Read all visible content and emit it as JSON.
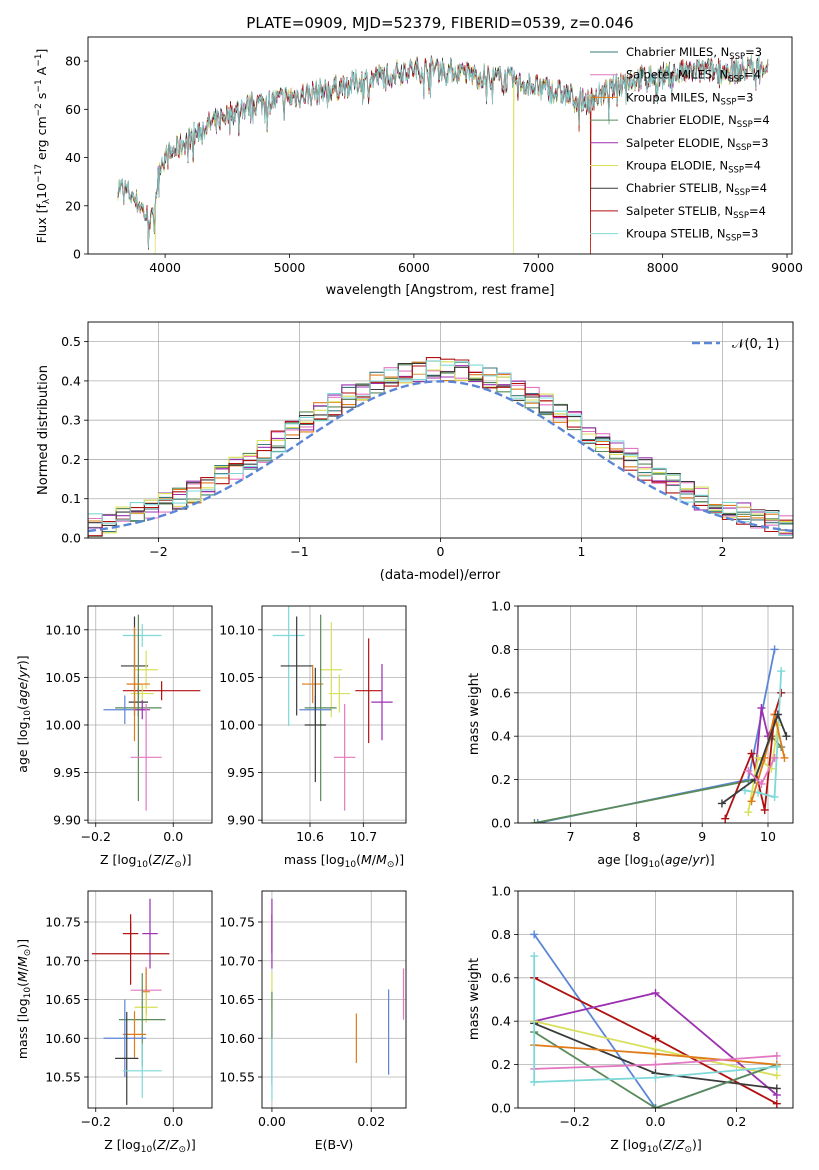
{
  "figure_title": "PLATE=0909, MJD=52379, FIBERID=0539, z=0.046",
  "colors": {
    "Chabrier MILES": "#3a7a7a",
    "Salpeter MILES": "#e377c2",
    "Kroupa MILES": "#e07b1a",
    "Chabrier ELODIE": "#5a8a5a",
    "Salpeter ELODIE": "#9b30b0",
    "Kroupa ELODIE": "#d8e05a",
    "Chabrier STELIB": "#3a3a3a",
    "Salpeter STELIB": "#b01010",
    "Kroupa STELIB": "#7fd8d8",
    "reference": "#5b86d6"
  },
  "chart_data": [
    {
      "id": "spectrum",
      "type": "line",
      "title": "PLATE=0909, MJD=52379, FIBERID=0539, z=0.046",
      "xlabel": "wavelength [Angstrom, rest frame]",
      "ylabel": "Flux [f_λ 10^-17 erg cm^-2 s^-1 A^-1]",
      "xlim": [
        3380,
        9040
      ],
      "ylim": [
        0,
        90
      ],
      "xticks": [
        4000,
        5000,
        6000,
        7000,
        8000,
        9000
      ],
      "yticks": [
        0,
        20,
        40,
        60,
        80
      ],
      "legend_position": "upper right",
      "legend": [
        {
          "label": "Chabrier MILES, N",
          "sub": "SSP",
          "suffix": "=3"
        },
        {
          "label": "Salpeter MILES, N",
          "sub": "SSP",
          "suffix": "=4"
        },
        {
          "label": "Kroupa MILES, N",
          "sub": "SSP",
          "suffix": "=3"
        },
        {
          "label": "Chabrier ELODIE, N",
          "sub": "SSP",
          "suffix": "=4"
        },
        {
          "label": "Salpeter ELODIE, N",
          "sub": "SSP",
          "suffix": "=3"
        },
        {
          "label": "Kroupa ELODIE, N",
          "sub": "SSP",
          "suffix": "=4"
        },
        {
          "label": "Chabrier STELIB, N",
          "sub": "SSP",
          "suffix": "=4"
        },
        {
          "label": "Salpeter STELIB, N",
          "sub": "SSP",
          "suffix": "=4"
        },
        {
          "label": "Kroupa STELIB, N",
          "sub": "SSP",
          "suffix": "=3"
        }
      ],
      "continuum_anchors": [
        [
          3620,
          28
        ],
        [
          3700,
          26
        ],
        [
          3800,
          20
        ],
        [
          3850,
          16
        ],
        [
          3900,
          14
        ],
        [
          3960,
          38
        ],
        [
          4100,
          44
        ],
        [
          4300,
          52
        ],
        [
          4500,
          58
        ],
        [
          4700,
          62
        ],
        [
          4900,
          64
        ],
        [
          5100,
          66
        ],
        [
          5300,
          68
        ],
        [
          5600,
          72
        ],
        [
          5900,
          76
        ],
        [
          6200,
          77
        ],
        [
          6500,
          74
        ],
        [
          6800,
          72
        ],
        [
          7100,
          68
        ],
        [
          7400,
          63
        ],
        [
          7700,
          72
        ],
        [
          8000,
          74
        ],
        [
          8300,
          76
        ],
        [
          8600,
          76
        ],
        [
          8800,
          78
        ]
      ],
      "spectrum_range": [
        3620,
        8850
      ],
      "drop_to_zero": [
        {
          "model": "Kroupa ELODIE",
          "x": 3920
        },
        {
          "model": "Kroupa ELODIE",
          "x": 6800
        },
        {
          "model": "Kroupa MILES",
          "x": 7420
        },
        {
          "model": "Salpeter STELIB",
          "x": 7420
        }
      ]
    },
    {
      "id": "residual_histogram",
      "type": "step",
      "xlabel": "(data-model)/error",
      "ylabel": "Normed distribution",
      "xlim": [
        -2.5,
        2.5
      ],
      "ylim": [
        0,
        0.55
      ],
      "xticks": [
        -2,
        -1,
        0,
        1,
        2
      ],
      "yticks": [
        0.0,
        0.1,
        0.2,
        0.3,
        0.4,
        0.5
      ],
      "grid": true,
      "reference_curve": {
        "label": "𝒩(0, 1)",
        "mean": 0,
        "sigma": 1
      },
      "bin_width": 0.1,
      "bin_start": -2.5,
      "legend_position": "upper right"
    },
    {
      "id": "age_vs_Z",
      "type": "errorbar",
      "xlabel": "Z [log10(Z/Z⊙)]",
      "ylabel": "age [log10(age/yr)]",
      "xlim": [
        -0.22,
        0.1
      ],
      "ylim": [
        9.897,
        10.125
      ],
      "xticks": [
        -0.2,
        0.0
      ],
      "yticks": [
        9.9,
        9.95,
        10.0,
        10.05,
        10.1
      ],
      "grid": true,
      "points": [
        {
          "model": "Kroupa STELIB",
          "x": -0.08,
          "xerr": 0.05,
          "y": 10.094,
          "yerr": 0.012
        },
        {
          "model": "Chabrier STELIB",
          "x": -0.1,
          "xerr": 0.035,
          "y": 10.062,
          "yerr": 0.052
        },
        {
          "model": "Kroupa ELODIE",
          "x": -0.07,
          "xerr": 0.03,
          "y": 10.058,
          "yerr": 0.02
        },
        {
          "model": "Kroupa MILES",
          "x": -0.09,
          "xerr": 0.03,
          "y": 10.043,
          "yerr": 0.01
        },
        {
          "model": "Salpeter STELIB",
          "x": -0.03,
          "xerr": 0.1,
          "y": 10.036,
          "yerr": 0.01
        },
        {
          "model": "Kroupa ELODIE",
          "x": -0.08,
          "xerr": 0.03,
          "y": 10.033,
          "yerr": 0.01
        },
        {
          "model": "Chabrier STELIB",
          "x": -0.09,
          "xerr": 0.025,
          "y": 10.024,
          "yerr": 0.015
        },
        {
          "model": "Chabrier ELODIE",
          "x": -0.09,
          "xerr": 0.06,
          "y": 10.018,
          "yerr": 0.098
        },
        {
          "model": "Reference",
          "x": -0.125,
          "xerr": 0.055,
          "y": 10.016,
          "yerr": 0.015
        },
        {
          "model": "Salpeter ELODIE",
          "x": -0.08,
          "xerr": 0.02,
          "y": 10.016,
          "yerr": 0.01
        },
        {
          "model": "Salpeter MILES",
          "x": -0.07,
          "xerr": 0.04,
          "y": 9.966,
          "yerr": 0.056
        },
        {
          "model": "Kroupa MILES",
          "x": -0.1,
          "xerr": 0.02,
          "y": 10.043,
          "yerr": 0.06
        }
      ]
    },
    {
      "id": "age_vs_mass",
      "type": "errorbar",
      "xlabel": "mass [log10(M/M⊙)]",
      "ylim": [
        9.897,
        10.125
      ],
      "xlim": [
        10.51,
        10.78
      ],
      "xticks": [
        10.6,
        10.7
      ],
      "yticks": [
        9.9,
        9.95,
        10.0,
        10.05,
        10.1
      ],
      "grid": true,
      "points": [
        {
          "model": "Kroupa STELIB",
          "x": 10.56,
          "xerr": 0.03,
          "y": 10.094,
          "yerr": 0.095
        },
        {
          "model": "Chabrier STELIB",
          "x": 10.575,
          "xerr": 0.03,
          "y": 10.062,
          "yerr": 0.052
        },
        {
          "model": "Kroupa ELODIE",
          "x": 10.64,
          "xerr": 0.02,
          "y": 10.058,
          "yerr": 0.05
        },
        {
          "model": "Kroupa MILES",
          "x": 10.605,
          "xerr": 0.02,
          "y": 10.043,
          "yerr": 0.02
        },
        {
          "model": "Kroupa ELODIE",
          "x": 10.655,
          "xerr": 0.02,
          "y": 10.033,
          "yerr": 0.02
        },
        {
          "model": "Salpeter STELIB",
          "x": 10.71,
          "xerr": 0.025,
          "y": 10.036,
          "yerr": 0.055
        },
        {
          "model": "Salpeter ELODIE",
          "x": 10.735,
          "xerr": 0.02,
          "y": 10.024,
          "yerr": 0.04
        },
        {
          "model": "Chabrier ELODIE",
          "x": 10.62,
          "xerr": 0.03,
          "y": 10.018,
          "yerr": 0.098
        },
        {
          "model": "Reference",
          "x": 10.61,
          "xerr": 0.03,
          "y": 10.016,
          "yerr": 0.015
        },
        {
          "model": "Salpeter MILES",
          "x": 10.665,
          "xerr": 0.02,
          "y": 9.966,
          "yerr": 0.056
        },
        {
          "model": "Chabrier STELIB",
          "x": 10.61,
          "xerr": 0.02,
          "y": 10.0,
          "yerr": 0.06
        }
      ]
    },
    {
      "id": "massweight_vs_age",
      "type": "line",
      "xlabel": "age [log10(age/yr)]",
      "ylabel": "mass weight",
      "xlim": [
        6.2,
        10.38
      ],
      "ylim": [
        0,
        1.0
      ],
      "xticks": [
        7,
        8,
        9,
        10
      ],
      "yticks": [
        0.0,
        0.2,
        0.4,
        0.6,
        0.8,
        1.0
      ],
      "grid": true,
      "series": [
        {
          "model": "Reference",
          "x": [
            6.5,
            9.7,
            10.1
          ],
          "y": [
            0.0,
            0.2,
            0.8
          ]
        },
        {
          "model": "Chabrier ELODIE",
          "x": [
            6.45,
            9.8,
            10.05,
            10.2
          ],
          "y": [
            0.0,
            0.2,
            0.4,
            0.35
          ]
        },
        {
          "model": "Salpeter ELODIE",
          "x": [
            9.8,
            9.9,
            10.0,
            10.15
          ],
          "y": [
            0.2,
            0.53,
            0.4,
            0.5
          ]
        },
        {
          "model": "Salpeter STELIB",
          "x": [
            9.35,
            9.75,
            9.95,
            10.1,
            10.2
          ],
          "y": [
            0.02,
            0.32,
            0.06,
            0.5,
            0.6
          ]
        },
        {
          "model": "Kroupa STELIB",
          "x": [
            9.65,
            9.85,
            10.1,
            10.2
          ],
          "y": [
            0.15,
            0.14,
            0.12,
            0.7
          ]
        },
        {
          "model": "Kroupa ELODIE",
          "x": [
            9.7,
            9.85,
            10.05,
            10.15
          ],
          "y": [
            0.05,
            0.3,
            0.25,
            0.45
          ]
        },
        {
          "model": "Kroupa MILES",
          "x": [
            9.75,
            9.95,
            10.1,
            10.25
          ],
          "y": [
            0.1,
            0.3,
            0.5,
            0.3
          ]
        },
        {
          "model": "Chabrier STELIB",
          "x": [
            9.3,
            9.8,
            10.15,
            10.28
          ],
          "y": [
            0.09,
            0.2,
            0.5,
            0.4
          ]
        },
        {
          "model": "Salpeter MILES",
          "x": [
            9.7,
            9.9,
            10.1
          ],
          "y": [
            0.24,
            0.18,
            0.3
          ]
        }
      ]
    },
    {
      "id": "mass_vs_Z",
      "type": "errorbar",
      "xlabel": "Z [log10(Z/Z⊙)]",
      "ylabel": "mass [log10(M/M⊙)]",
      "xlim": [
        -0.22,
        0.1
      ],
      "ylim": [
        10.51,
        10.79
      ],
      "xticks": [
        -0.2,
        0.0
      ],
      "yticks": [
        10.55,
        10.6,
        10.65,
        10.7,
        10.75
      ],
      "grid": true,
      "points": [
        {
          "model": "Salpeter STELIB",
          "x": -0.11,
          "xerr": 0.02,
          "y": 10.735,
          "yerr": 0.025
        },
        {
          "model": "Salpeter ELODIE",
          "x": -0.06,
          "xerr": 0.02,
          "y": 10.735,
          "yerr": 0.045
        },
        {
          "model": "Salpeter STELIB",
          "x": -0.11,
          "xerr": 0.1,
          "y": 10.709,
          "yerr": 0.04
        },
        {
          "model": "Salpeter MILES",
          "x": -0.07,
          "xerr": 0.04,
          "y": 10.662,
          "yerr": 0.03
        },
        {
          "model": "Kroupa MILES",
          "x": -0.07,
          "xerr": 0.01,
          "y": 10.66,
          "yerr": 0.03
        },
        {
          "model": "Kroupa ELODIE",
          "x": -0.07,
          "xerr": 0.03,
          "y": 10.64,
          "yerr": 0.02
        },
        {
          "model": "Chabrier ELODIE",
          "x": -0.08,
          "xerr": 0.06,
          "y": 10.624,
          "yerr": 0.06
        },
        {
          "model": "Kroupa MILES",
          "x": -0.1,
          "xerr": 0.03,
          "y": 10.605,
          "yerr": 0.03
        },
        {
          "model": "Reference",
          "x": -0.125,
          "xerr": 0.055,
          "y": 10.6,
          "yerr": 0.05
        },
        {
          "model": "Chabrier STELIB",
          "x": -0.12,
          "xerr": 0.03,
          "y": 10.574,
          "yerr": 0.06
        },
        {
          "model": "Kroupa STELIB",
          "x": -0.08,
          "xerr": 0.05,
          "y": 10.558,
          "yerr": 0.035
        }
      ]
    },
    {
      "id": "mass_vs_EBV",
      "type": "errorbar",
      "xlabel": "E(B-V)",
      "xlim": [
        -0.002,
        0.027
      ],
      "ylim": [
        10.51,
        10.79
      ],
      "xticks": [
        0.0,
        0.02
      ],
      "yticks": [
        10.55,
        10.6,
        10.65,
        10.7,
        10.75
      ],
      "grid": true,
      "points": [
        {
          "model": "Salpeter STELIB",
          "x": 0.0,
          "xerr": 0.0,
          "y": 10.735,
          "yerr": 0.025
        },
        {
          "model": "Salpeter ELODIE",
          "x": 0.0,
          "xerr": 0.0,
          "y": 10.735,
          "yerr": 0.045
        },
        {
          "model": "Kroupa ELODIE",
          "x": 0.0,
          "xerr": 0.0,
          "y": 10.66,
          "yerr": 0.025
        },
        {
          "model": "Chabrier ELODIE",
          "x": 0.0,
          "xerr": 0.0,
          "y": 10.6,
          "yerr": 0.06
        },
        {
          "model": "Kroupa STELIB",
          "x": 0.0,
          "xerr": 0.0,
          "y": 10.56,
          "yerr": 0.04
        },
        {
          "model": "Kroupa MILES",
          "x": 0.017,
          "xerr": 0.0,
          "y": 10.6,
          "yerr": 0.032
        },
        {
          "model": "Reference",
          "x": 0.0235,
          "xerr": 0.0,
          "y": 10.608,
          "yerr": 0.055
        },
        {
          "model": "Salpeter MILES",
          "x": 0.0265,
          "xerr": 0.0,
          "y": 10.657,
          "yerr": 0.033
        }
      ]
    },
    {
      "id": "massweight_vs_Z",
      "type": "line",
      "xlabel": "Z [log10(Z/Z⊙)]",
      "ylabel": "mass weight",
      "xlim": [
        -0.34,
        0.34
      ],
      "ylim": [
        0,
        1.0
      ],
      "xticks": [
        -0.2,
        0.0,
        0.2
      ],
      "yticks": [
        0.0,
        0.2,
        0.4,
        0.6,
        0.8,
        1.0
      ],
      "grid": true,
      "series": [
        {
          "model": "Reference",
          "x": [
            -0.3,
            0.0,
            0.3
          ],
          "y": [
            0.8,
            0.0,
            0.2
          ]
        },
        {
          "model": "Salpeter STELIB",
          "x": [
            -0.3,
            0.0,
            0.3
          ],
          "y": [
            0.6,
            0.32,
            0.02
          ]
        },
        {
          "model": "Salpeter ELODIE",
          "x": [
            -0.3,
            0.0,
            0.3
          ],
          "y": [
            0.4,
            0.53,
            0.06
          ]
        },
        {
          "model": "Kroupa ELODIE",
          "x": [
            -0.3,
            0.0,
            0.3
          ],
          "y": [
            0.4,
            0.27,
            0.15
          ]
        },
        {
          "model": "Chabrier STELIB",
          "x": [
            -0.3,
            0.0,
            0.3
          ],
          "y": [
            0.39,
            0.16,
            0.09
          ]
        },
        {
          "model": "Chabrier ELODIE",
          "x": [
            -0.3,
            0.0,
            0.3
          ],
          "y": [
            0.35,
            0.0,
            0.2
          ]
        },
        {
          "model": "Kroupa MILES",
          "x": [
            -0.3,
            0.0,
            0.3
          ],
          "y": [
            0.29,
            0.25,
            0.2
          ]
        },
        {
          "model": "Salpeter MILES",
          "x": [
            -0.3,
            0.0,
            0.3
          ],
          "y": [
            0.18,
            0.2,
            0.24
          ]
        },
        {
          "model": "Kroupa STELIB",
          "x": [
            -0.3,
            0.0,
            0.3
          ],
          "y": [
            0.12,
            0.14,
            0.19
          ]
        },
        {
          "model": "Kroupa STELIB",
          "x": [
            -0.3,
            -0.3
          ],
          "y": [
            0.12,
            0.7
          ]
        }
      ]
    }
  ]
}
